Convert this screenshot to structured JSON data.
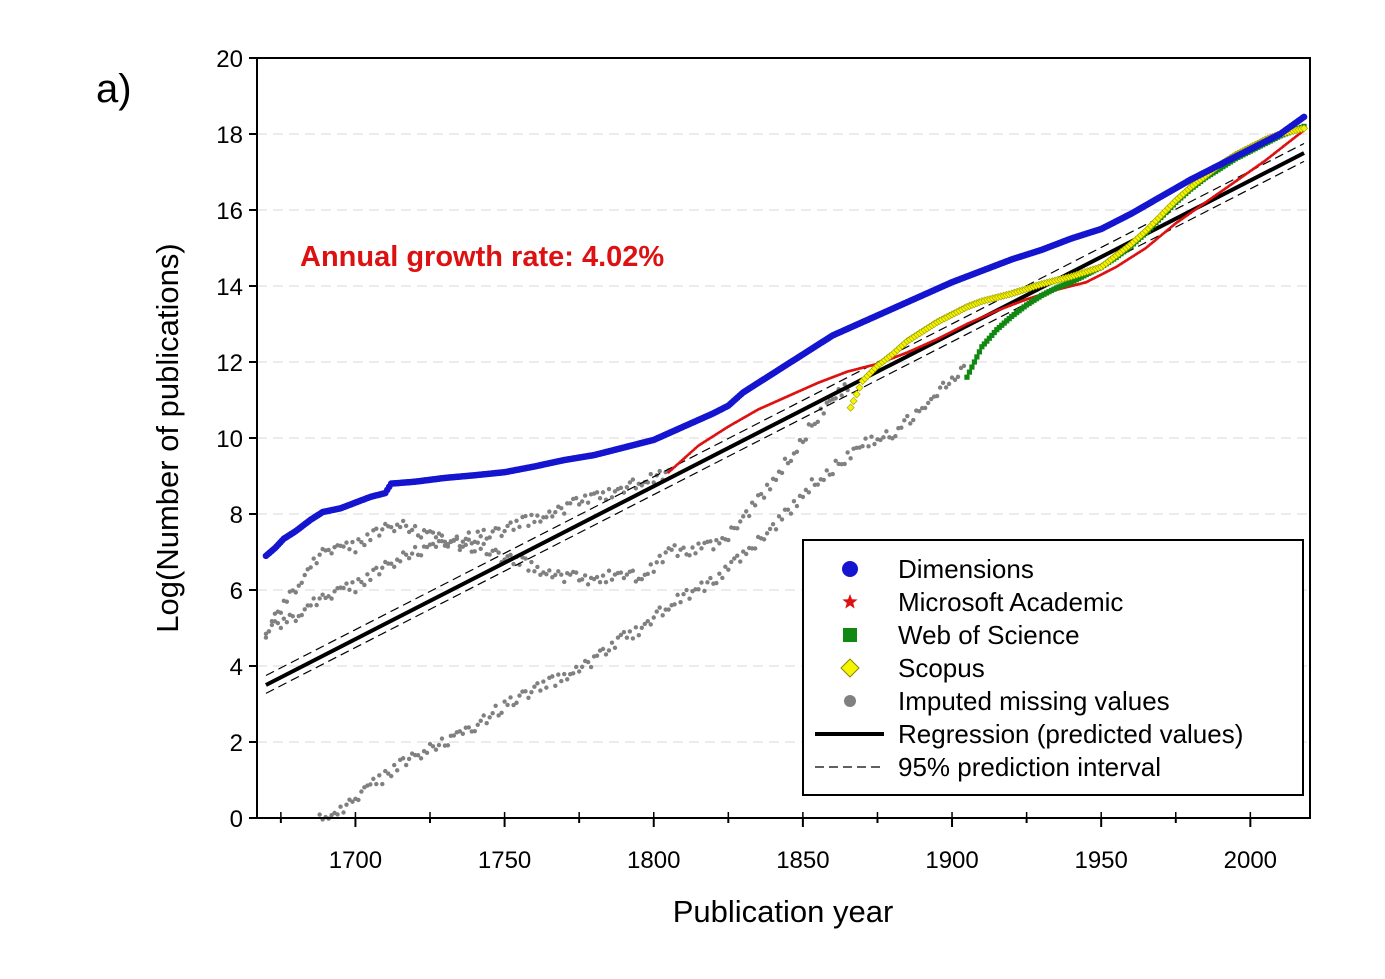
{
  "chart_data": {
    "type": "scatter",
    "panel_label": "a)",
    "xlabel": "Publication year",
    "ylabel": "Log(Number of publications)",
    "xlim": [
      1667,
      2020
    ],
    "ylim": [
      0,
      20
    ],
    "xticks": [
      1700,
      1750,
      1800,
      1850,
      1900,
      1950,
      2000
    ],
    "yticks": [
      0,
      2,
      4,
      6,
      8,
      10,
      12,
      14,
      16,
      18,
      20
    ],
    "grid": "horizontal dashed",
    "annotation": {
      "text": "Annual growth rate: 4.02%",
      "color": "#dd1111"
    },
    "legend_position": "bottom-right",
    "legend": [
      {
        "label": "Dimensions",
        "marker": "circle",
        "color": "#1515d0"
      },
      {
        "label": "Microsoft Academic",
        "marker": "star",
        "color": "#dd1111"
      },
      {
        "label": "Web of Science",
        "marker": "square",
        "color": "#118811"
      },
      {
        "label": "Scopus",
        "marker": "diamond",
        "color": "#f5f500"
      },
      {
        "label": "Imputed missing values",
        "marker": "circle",
        "color": "#808080"
      },
      {
        "label": "Regression (predicted values)",
        "marker": "solid-line",
        "color": "#000000"
      },
      {
        "label": "95% prediction interval",
        "marker": "dashed-line",
        "color": "#000000"
      }
    ],
    "series": [
      {
        "name": "Dimensions",
        "color": "#1515d0",
        "style": "dots-large",
        "points": [
          [
            1670,
            6.9
          ],
          [
            1673,
            7.1
          ],
          [
            1676,
            7.35
          ],
          [
            1680,
            7.55
          ],
          [
            1685,
            7.85
          ],
          [
            1689,
            8.05
          ],
          [
            1695,
            8.15
          ],
          [
            1700,
            8.3
          ],
          [
            1705,
            8.45
          ],
          [
            1710,
            8.55
          ],
          [
            1712,
            8.8
          ],
          [
            1720,
            8.85
          ],
          [
            1730,
            8.95
          ],
          [
            1740,
            9.02
          ],
          [
            1750,
            9.1
          ],
          [
            1760,
            9.25
          ],
          [
            1770,
            9.42
          ],
          [
            1780,
            9.55
          ],
          [
            1790,
            9.75
          ],
          [
            1800,
            9.95
          ],
          [
            1810,
            10.3
          ],
          [
            1820,
            10.65
          ],
          [
            1825,
            10.85
          ],
          [
            1830,
            11.2
          ],
          [
            1840,
            11.7
          ],
          [
            1850,
            12.2
          ],
          [
            1860,
            12.7
          ],
          [
            1870,
            13.05
          ],
          [
            1880,
            13.4
          ],
          [
            1890,
            13.75
          ],
          [
            1900,
            14.1
          ],
          [
            1910,
            14.4
          ],
          [
            1920,
            14.7
          ],
          [
            1930,
            14.95
          ],
          [
            1940,
            15.25
          ],
          [
            1950,
            15.5
          ],
          [
            1960,
            15.9
          ],
          [
            1970,
            16.35
          ],
          [
            1980,
            16.8
          ],
          [
            1990,
            17.2
          ],
          [
            2000,
            17.6
          ],
          [
            2010,
            18.0
          ],
          [
            2018,
            18.45
          ]
        ]
      },
      {
        "name": "Microsoft Academic",
        "color": "#dd1111",
        "style": "dots-small",
        "points": [
          [
            1805,
            9.1
          ],
          [
            1815,
            9.8
          ],
          [
            1825,
            10.3
          ],
          [
            1835,
            10.75
          ],
          [
            1845,
            11.1
          ],
          [
            1855,
            11.45
          ],
          [
            1865,
            11.75
          ],
          [
            1875,
            11.95
          ],
          [
            1885,
            12.25
          ],
          [
            1895,
            12.6
          ],
          [
            1905,
            13.0
          ],
          [
            1915,
            13.35
          ],
          [
            1925,
            13.65
          ],
          [
            1935,
            13.9
          ],
          [
            1945,
            14.1
          ],
          [
            1955,
            14.5
          ],
          [
            1965,
            15.0
          ],
          [
            1975,
            15.65
          ],
          [
            1985,
            16.2
          ],
          [
            1995,
            16.75
          ],
          [
            2005,
            17.3
          ],
          [
            2018,
            18.1
          ]
        ]
      },
      {
        "name": "Web of Science",
        "color": "#118811",
        "style": "squares",
        "points": [
          [
            1905,
            11.6
          ],
          [
            1910,
            12.4
          ],
          [
            1915,
            12.85
          ],
          [
            1920,
            13.2
          ],
          [
            1925,
            13.5
          ],
          [
            1930,
            13.75
          ],
          [
            1935,
            13.95
          ],
          [
            1940,
            14.1
          ],
          [
            1945,
            14.3
          ],
          [
            1950,
            14.5
          ],
          [
            1955,
            14.75
          ],
          [
            1960,
            15.05
          ],
          [
            1965,
            15.4
          ],
          [
            1970,
            15.8
          ],
          [
            1975,
            16.2
          ],
          [
            1980,
            16.55
          ],
          [
            1985,
            16.85
          ],
          [
            1990,
            17.1
          ],
          [
            1995,
            17.35
          ],
          [
            2000,
            17.55
          ],
          [
            2005,
            17.75
          ],
          [
            2010,
            17.95
          ],
          [
            2018,
            18.2
          ]
        ]
      },
      {
        "name": "Scopus",
        "color": "#f5f500",
        "style": "diamonds",
        "points": [
          [
            1866,
            10.8
          ],
          [
            1870,
            11.5
          ],
          [
            1875,
            11.9
          ],
          [
            1880,
            12.2
          ],
          [
            1885,
            12.55
          ],
          [
            1890,
            12.8
          ],
          [
            1895,
            13.05
          ],
          [
            1900,
            13.25
          ],
          [
            1905,
            13.45
          ],
          [
            1910,
            13.6
          ],
          [
            1920,
            13.8
          ],
          [
            1930,
            14.05
          ],
          [
            1940,
            14.25
          ],
          [
            1950,
            14.5
          ],
          [
            1955,
            14.8
          ],
          [
            1960,
            15.1
          ],
          [
            1965,
            15.45
          ],
          [
            1970,
            15.85
          ],
          [
            1975,
            16.25
          ],
          [
            1980,
            16.6
          ],
          [
            1985,
            16.9
          ],
          [
            1990,
            17.2
          ],
          [
            1995,
            17.45
          ],
          [
            2000,
            17.65
          ],
          [
            2005,
            17.85
          ],
          [
            2010,
            18.0
          ],
          [
            2018,
            18.15
          ]
        ]
      },
      {
        "name": "Imputed missing values (upper band)",
        "color": "#808080",
        "style": "dots-scatter",
        "points": [
          [
            1670,
            4.8
          ],
          [
            1675,
            5.5
          ],
          [
            1680,
            6.0
          ],
          [
            1685,
            6.7
          ],
          [
            1690,
            7.1
          ],
          [
            1695,
            7.1
          ],
          [
            1700,
            7.15
          ],
          [
            1705,
            7.4
          ],
          [
            1710,
            7.6
          ],
          [
            1715,
            7.7
          ],
          [
            1720,
            7.55
          ],
          [
            1725,
            7.45
          ],
          [
            1730,
            7.35
          ],
          [
            1735,
            7.2
          ],
          [
            1740,
            7.15
          ],
          [
            1745,
            7.05
          ],
          [
            1750,
            6.85
          ],
          [
            1755,
            6.75
          ],
          [
            1760,
            6.6
          ],
          [
            1765,
            6.45
          ],
          [
            1770,
            6.35
          ],
          [
            1775,
            6.3
          ],
          [
            1780,
            6.15
          ],
          [
            1785,
            6.4
          ],
          [
            1790,
            6.45
          ],
          [
            1795,
            6.35
          ],
          [
            1800,
            6.6
          ],
          [
            1805,
            7.05
          ],
          [
            1810,
            7.0
          ],
          [
            1815,
            7.1
          ],
          [
            1820,
            7.15
          ],
          [
            1825,
            7.4
          ],
          [
            1830,
            7.9
          ],
          [
            1835,
            8.35
          ],
          [
            1840,
            8.9
          ],
          [
            1845,
            9.4
          ],
          [
            1850,
            10.0
          ],
          [
            1855,
            10.55
          ],
          [
            1860,
            11.05
          ],
          [
            1865,
            11.35
          ]
        ]
      },
      {
        "name": "Imputed missing values (middle band)",
        "color": "#808080",
        "style": "dots-scatter",
        "points": [
          [
            1670,
            4.9
          ],
          [
            1675,
            5.1
          ],
          [
            1680,
            5.25
          ],
          [
            1685,
            5.7
          ],
          [
            1690,
            5.85
          ],
          [
            1695,
            6.0
          ],
          [
            1700,
            6.1
          ],
          [
            1705,
            6.35
          ],
          [
            1710,
            6.6
          ],
          [
            1715,
            6.8
          ],
          [
            1720,
            7.0
          ],
          [
            1725,
            7.1
          ],
          [
            1730,
            7.25
          ],
          [
            1735,
            7.3
          ],
          [
            1740,
            7.4
          ],
          [
            1745,
            7.5
          ],
          [
            1750,
            7.6
          ],
          [
            1755,
            7.75
          ],
          [
            1760,
            7.9
          ],
          [
            1765,
            8.0
          ],
          [
            1770,
            8.15
          ],
          [
            1775,
            8.3
          ],
          [
            1780,
            8.4
          ],
          [
            1785,
            8.55
          ],
          [
            1790,
            8.7
          ],
          [
            1795,
            8.85
          ],
          [
            1800,
            8.95
          ],
          [
            1805,
            9.1
          ]
        ]
      },
      {
        "name": "Imputed missing values (lower band)",
        "color": "#808080",
        "style": "dots-scatter",
        "points": [
          [
            1688,
            0.0
          ],
          [
            1692,
            0.1
          ],
          [
            1696,
            0.3
          ],
          [
            1700,
            0.55
          ],
          [
            1705,
            0.85
          ],
          [
            1710,
            1.1
          ],
          [
            1715,
            1.4
          ],
          [
            1720,
            1.6
          ],
          [
            1725,
            1.8
          ],
          [
            1730,
            2.0
          ],
          [
            1735,
            2.2
          ],
          [
            1740,
            2.4
          ],
          [
            1745,
            2.7
          ],
          [
            1750,
            2.95
          ],
          [
            1755,
            3.2
          ],
          [
            1760,
            3.4
          ],
          [
            1765,
            3.55
          ],
          [
            1770,
            3.75
          ],
          [
            1775,
            3.95
          ],
          [
            1780,
            4.15
          ],
          [
            1785,
            4.4
          ],
          [
            1790,
            4.75
          ],
          [
            1795,
            4.95
          ],
          [
            1800,
            5.3
          ],
          [
            1805,
            5.6
          ],
          [
            1810,
            5.85
          ],
          [
            1815,
            6.0
          ],
          [
            1820,
            6.25
          ],
          [
            1825,
            6.55
          ],
          [
            1830,
            6.9
          ],
          [
            1835,
            7.25
          ],
          [
            1840,
            7.65
          ],
          [
            1845,
            8.05
          ],
          [
            1850,
            8.55
          ],
          [
            1855,
            8.9
          ],
          [
            1860,
            9.2
          ],
          [
            1865,
            9.5
          ],
          [
            1870,
            9.85
          ],
          [
            1875,
            9.95
          ],
          [
            1880,
            10.1
          ],
          [
            1885,
            10.45
          ],
          [
            1890,
            10.85
          ],
          [
            1895,
            11.2
          ],
          [
            1900,
            11.55
          ],
          [
            1904,
            11.85
          ]
        ]
      },
      {
        "name": "Regression (predicted values)",
        "color": "#000000",
        "style": "solid-line",
        "points": [
          [
            1670,
            3.5
          ],
          [
            2018,
            17.5
          ]
        ]
      },
      {
        "name": "95% prediction interval (upper)",
        "color": "#000000",
        "style": "dashed-line",
        "points": [
          [
            1670,
            3.75
          ],
          [
            2018,
            17.75
          ]
        ]
      },
      {
        "name": "95% prediction interval (lower)",
        "color": "#000000",
        "style": "dashed-line",
        "points": [
          [
            1670,
            3.28
          ],
          [
            2018,
            17.28
          ]
        ]
      }
    ]
  }
}
